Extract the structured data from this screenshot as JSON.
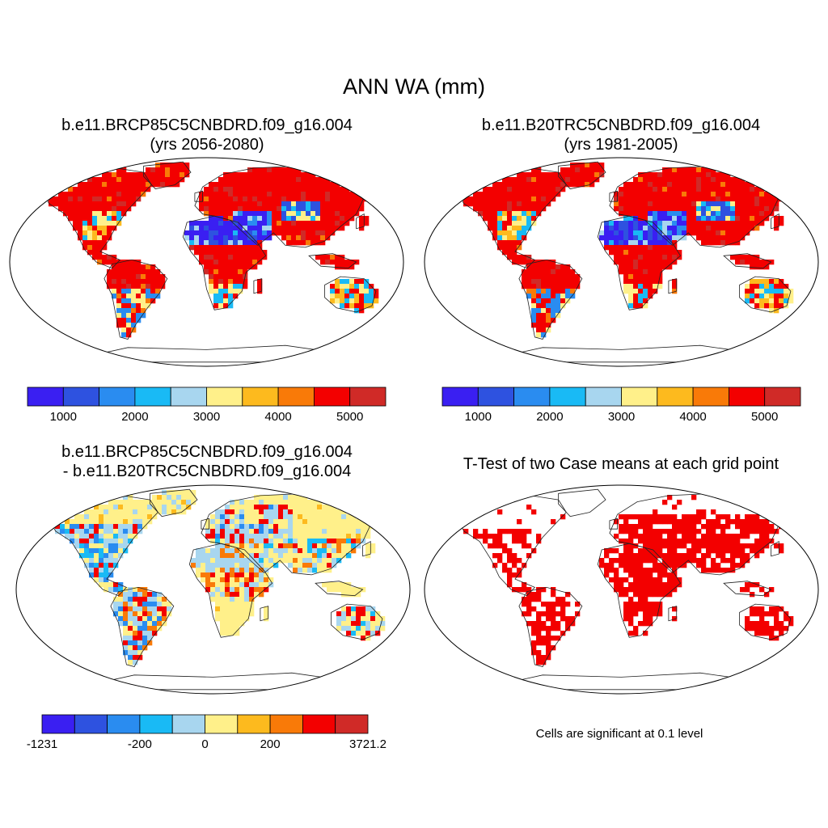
{
  "title": "ANN WA (mm)",
  "panels": [
    {
      "id": "case1",
      "title_line1": "b.e11.BRCP85C5CNBDRD.f09_g16.004",
      "title_line2": "(yrs 2056-2080)",
      "fill": "mean"
    },
    {
      "id": "case2",
      "title_line1": "b.e11.B20TRC5CNBDRD.f09_g16.004",
      "title_line2": "(yrs 1981-2005)",
      "fill": "mean"
    },
    {
      "id": "diff",
      "title_line1": "b.e11.BRCP85C5CNBDRD.f09_g16.004",
      "title_line2": "- b.e11.B20TRC5CNBDRD.f09_g16.004",
      "fill": "diff"
    },
    {
      "id": "ttest",
      "title_line1": "T-Test of two Case means at each grid point",
      "title_line2": "",
      "fill": "ttest",
      "note": "Cells are significant at 0.1 level"
    }
  ],
  "colorbars": {
    "mean": {
      "colors": [
        "#3a1ff2",
        "#2e52e0",
        "#2a8cf0",
        "#19baf5",
        "#a8d6ef",
        "#fff08a",
        "#fdba1e",
        "#f97a08",
        "#f30000",
        "#d02a27"
      ],
      "tick_labels": [
        "1000",
        "2000",
        "3000",
        "4000",
        "5000"
      ]
    },
    "diff": {
      "colors": [
        "#3a1ff2",
        "#2e52e0",
        "#2a8cf0",
        "#19baf5",
        "#a8d6ef",
        "#fff08a",
        "#fdba1e",
        "#f97a08",
        "#f30000",
        "#d02a27"
      ],
      "tick_labels": [
        "-1231",
        "-200",
        "0",
        "200",
        "3721.2"
      ]
    }
  },
  "ttest_color": "#f30000"
}
